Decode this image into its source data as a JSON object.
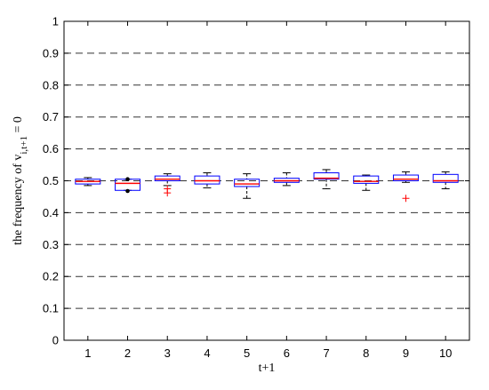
{
  "chart_data": {
    "type": "box",
    "xlabel": "t+1",
    "ylabel_main": "the frequency of v",
    "ylabel_subscript": "i,t+1",
    "ylabel_suffix": " = 0",
    "ylim": [
      0,
      1
    ],
    "y_ticks": [
      0,
      0.1,
      0.2,
      0.3,
      0.4,
      0.5,
      0.6,
      0.7,
      0.8,
      0.9,
      1
    ],
    "y_tick_labels": [
      "0",
      "0.1",
      "0.2",
      "0.3",
      "0.4",
      "0.5",
      "0.6",
      "0.7",
      "0.8",
      "0.9",
      "1"
    ],
    "grid": "horizontal dashed",
    "categories": [
      "1",
      "2",
      "3",
      "4",
      "5",
      "6",
      "7",
      "8",
      "9",
      "10"
    ],
    "boxes": [
      {
        "category": "1",
        "whisker_low": 0.485,
        "q1": 0.49,
        "median": 0.498,
        "q3": 0.505,
        "whisker_high": 0.51,
        "outliers": []
      },
      {
        "category": "2",
        "whisker_low": 0.47,
        "q1": 0.47,
        "median": 0.492,
        "q3": 0.505,
        "whisker_high": 0.505,
        "outliers": [
          0.468,
          0.505
        ]
      },
      {
        "category": "3",
        "whisker_low": 0.485,
        "q1": 0.5,
        "median": 0.505,
        "q3": 0.515,
        "whisker_high": 0.522,
        "outliers": [
          0.475,
          0.462
        ]
      },
      {
        "category": "4",
        "whisker_low": 0.478,
        "q1": 0.49,
        "median": 0.5,
        "q3": 0.515,
        "whisker_high": 0.525,
        "outliers": []
      },
      {
        "category": "5",
        "whisker_low": 0.445,
        "q1": 0.482,
        "median": 0.49,
        "q3": 0.505,
        "whisker_high": 0.522,
        "outliers": []
      },
      {
        "category": "6",
        "whisker_low": 0.485,
        "q1": 0.495,
        "median": 0.5,
        "q3": 0.508,
        "whisker_high": 0.525,
        "outliers": []
      },
      {
        "category": "7",
        "whisker_low": 0.475,
        "q1": 0.505,
        "median": 0.508,
        "q3": 0.525,
        "whisker_high": 0.535,
        "outliers": []
      },
      {
        "category": "8",
        "whisker_low": 0.47,
        "q1": 0.492,
        "median": 0.498,
        "q3": 0.515,
        "whisker_high": 0.518,
        "outliers": []
      },
      {
        "category": "9",
        "whisker_low": 0.495,
        "q1": 0.5,
        "median": 0.505,
        "q3": 0.518,
        "whisker_high": 0.528,
        "outliers": [
          0.445
        ]
      },
      {
        "category": "10",
        "whisker_low": 0.475,
        "q1": 0.495,
        "median": 0.5,
        "q3": 0.52,
        "whisker_high": 0.528,
        "outliers": []
      }
    ],
    "colors": {
      "box": "#0000ff",
      "median": "#ff0000",
      "whisker": "#000000",
      "outlier": "#ff0000",
      "outlier_dot": "#000000",
      "grid": "#000000"
    }
  }
}
